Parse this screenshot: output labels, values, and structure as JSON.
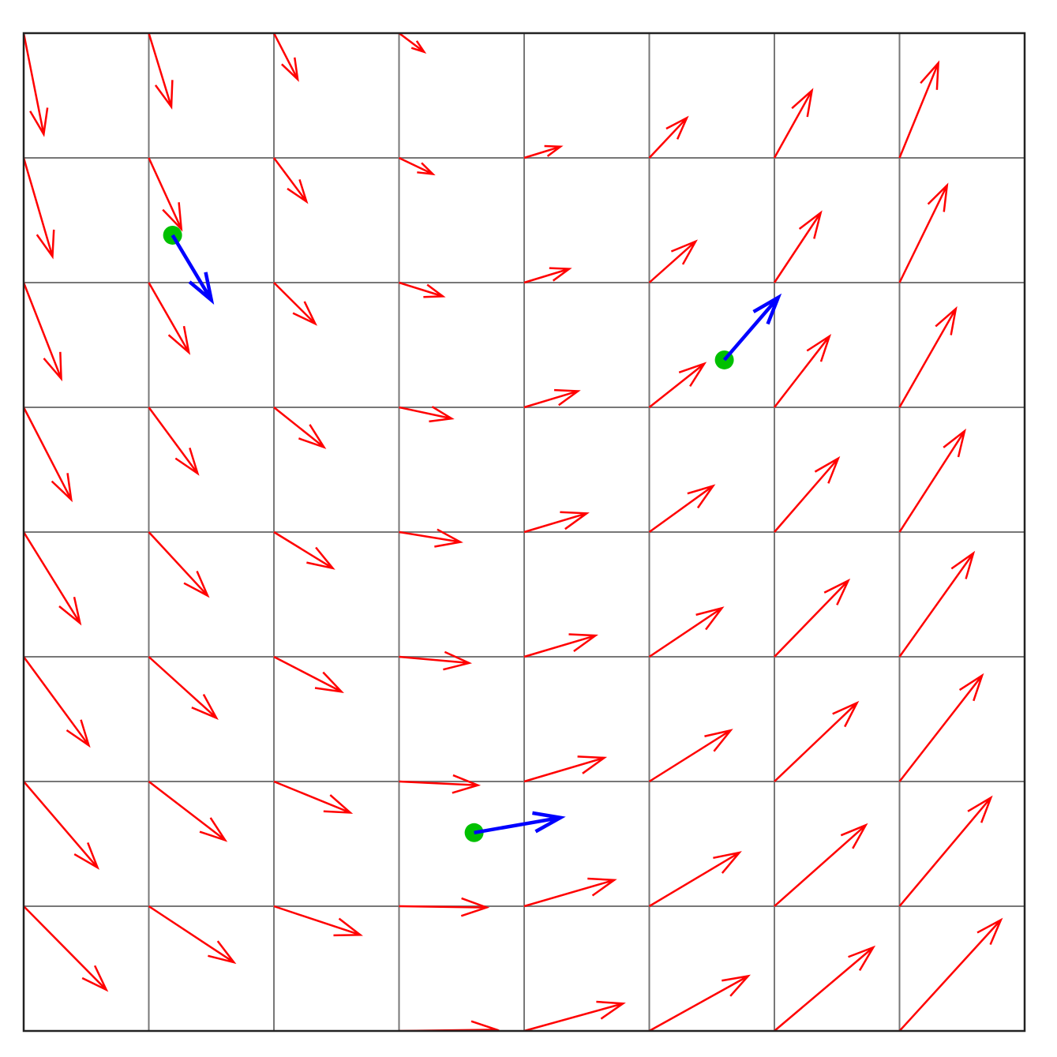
{
  "chart_data": {
    "type": "quiver",
    "xlim": [
      0,
      8
    ],
    "ylim": [
      0,
      8
    ],
    "xticks": [
      0,
      1,
      2,
      3,
      4,
      5,
      6,
      7,
      8
    ],
    "yticks": [
      0,
      1,
      2,
      3,
      4,
      5,
      6,
      7,
      8
    ],
    "grid": true,
    "color": "#ff0000",
    "x": [
      0,
      0,
      0,
      0,
      0,
      0,
      0,
      0,
      1,
      1,
      1,
      1,
      1,
      1,
      1,
      1,
      2,
      2,
      2,
      2,
      2,
      2,
      2,
      2,
      3,
      3,
      3,
      3,
      3,
      3,
      3,
      3,
      3,
      4,
      4,
      4,
      4,
      4,
      4,
      4,
      4,
      5,
      5,
      5,
      5,
      5,
      5,
      5,
      5,
      6,
      6,
      6,
      6,
      6,
      6,
      6,
      6,
      7,
      7,
      7,
      7,
      7,
      7,
      7,
      7
    ],
    "y": [
      8,
      7,
      6,
      5,
      4,
      3,
      2,
      1,
      8,
      7,
      6,
      5,
      4,
      3,
      2,
      1,
      8,
      7,
      6,
      5,
      4,
      3,
      2,
      1,
      8,
      7,
      6,
      5,
      4,
      3,
      2,
      1,
      0,
      7,
      6,
      5,
      4,
      3,
      2,
      1,
      0,
      7,
      6,
      5,
      4,
      3,
      2,
      1,
      0,
      7,
      6,
      5,
      4,
      3,
      2,
      1,
      0,
      7,
      6,
      5,
      4,
      3,
      2,
      1,
      0
    ],
    "u": [
      0.16,
      0.23,
      0.3,
      0.38,
      0.45,
      0.52,
      0.59,
      0.66,
      0.18,
      0.26,
      0.32,
      0.39,
      0.47,
      0.54,
      0.61,
      0.68,
      0.19,
      0.26,
      0.33,
      0.4,
      0.47,
      0.54,
      0.61,
      0.69,
      0.2,
      0.27,
      0.35,
      0.42,
      0.49,
      0.56,
      0.63,
      0.7,
      0.78,
      0.29,
      0.36,
      0.43,
      0.5,
      0.57,
      0.64,
      0.72,
      0.79,
      0.3,
      0.37,
      0.44,
      0.51,
      0.58,
      0.65,
      0.72,
      0.79,
      0.3,
      0.37,
      0.44,
      0.51,
      0.59,
      0.66,
      0.73,
      0.79,
      0.31,
      0.38,
      0.45,
      0.52,
      0.59,
      0.66,
      0.73,
      0.81
    ],
    "v": [
      -0.81,
      -0.79,
      -0.77,
      -0.74,
      -0.73,
      -0.71,
      -0.69,
      -0.67,
      -0.59,
      -0.57,
      -0.56,
      -0.53,
      -0.51,
      -0.49,
      -0.47,
      -0.45,
      -0.37,
      -0.35,
      -0.33,
      -0.32,
      -0.29,
      -0.28,
      -0.25,
      -0.23,
      -0.15,
      -0.13,
      -0.11,
      -0.09,
      -0.08,
      -0.05,
      -0.03,
      -0.01,
      0.01,
      0.09,
      0.11,
      0.13,
      0.15,
      0.17,
      0.19,
      0.21,
      0.22,
      0.32,
      0.33,
      0.35,
      0.37,
      0.39,
      0.41,
      0.43,
      0.44,
      0.54,
      0.56,
      0.57,
      0.59,
      0.61,
      0.63,
      0.65,
      0.67,
      0.76,
      0.78,
      0.79,
      0.81,
      0.83,
      0.85,
      0.87,
      0.89
    ],
    "probes": {
      "color": "#0000ff",
      "marker_color": "#00c000",
      "x": [
        1.19,
        5.6,
        3.6
      ],
      "y": [
        6.38,
        5.38,
        1.59
      ],
      "u": [
        0.31,
        0.43,
        0.69
      ],
      "v": [
        -0.52,
        0.5,
        0.12
      ]
    }
  }
}
